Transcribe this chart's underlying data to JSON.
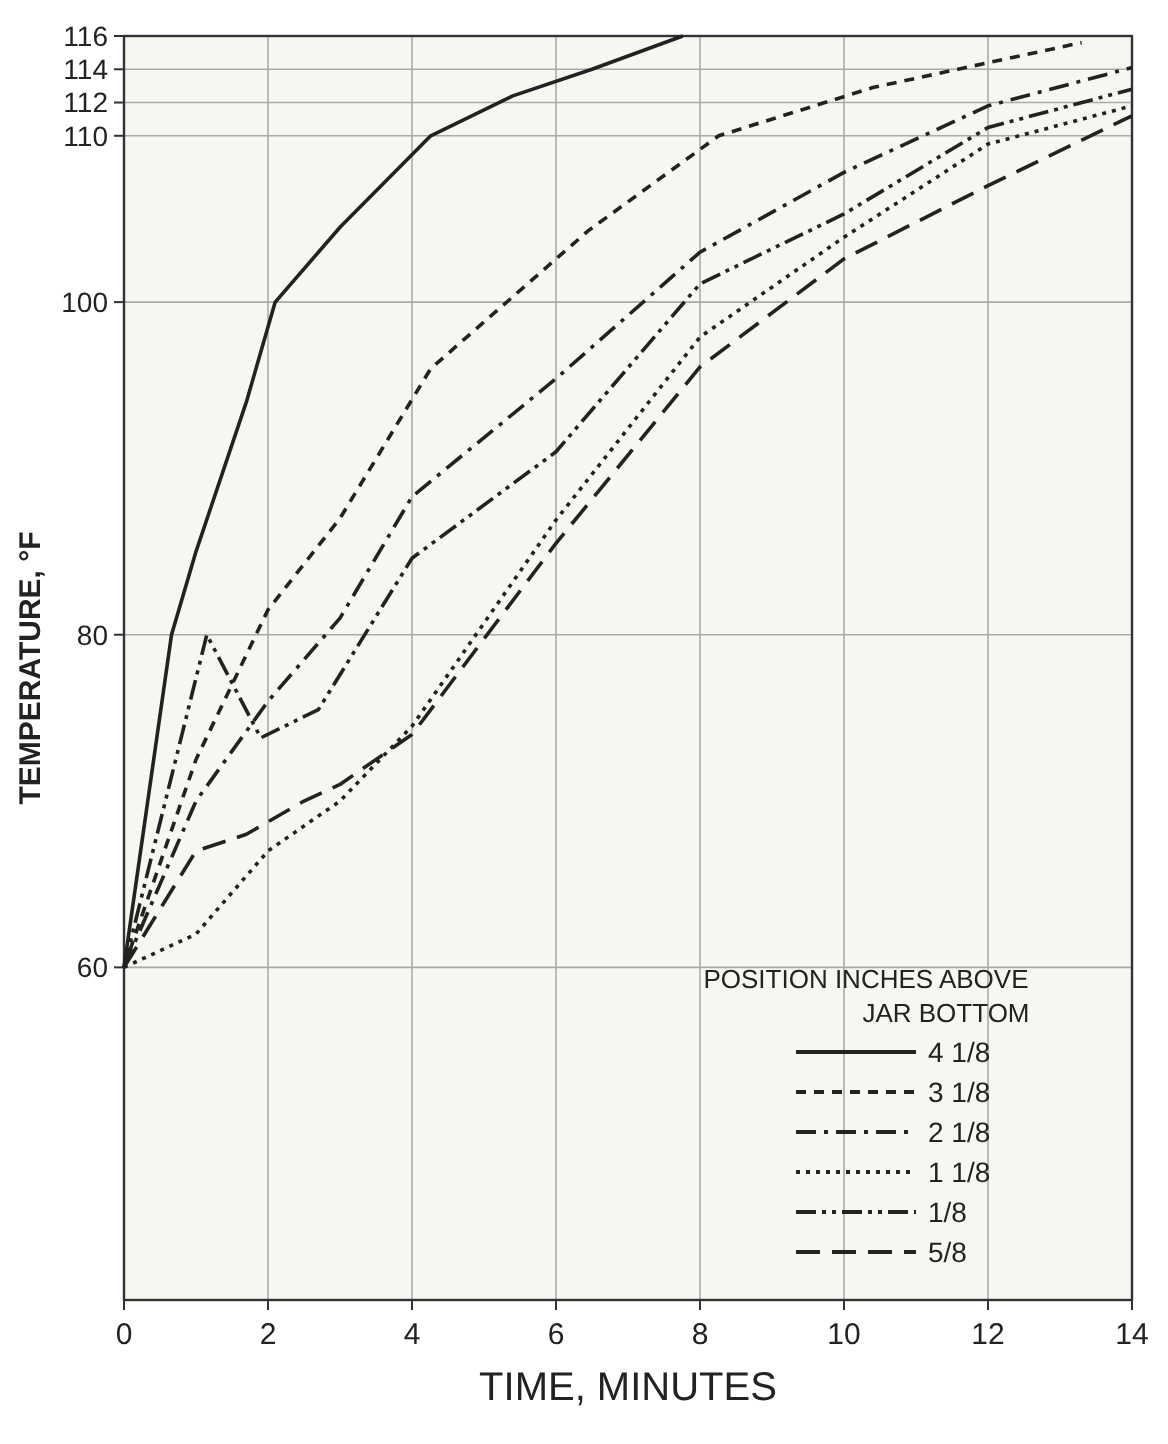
{
  "chart_data": {
    "type": "line",
    "xlabel": "TIME, MINUTES",
    "ylabel": "TEMPERATURE, °F",
    "legend_title": "POSITION INCHES ABOVE JAR BOTTOM",
    "xlim": [
      0,
      14
    ],
    "xticks": [
      0,
      2,
      4,
      6,
      8,
      10,
      12,
      14
    ],
    "ylim": [
      40,
      116
    ],
    "yticks": [
      60,
      80,
      100,
      110,
      112,
      114,
      116
    ],
    "grid": true,
    "legend": "bottom right",
    "series": [
      {
        "name": "4 1/8",
        "color": "#222222",
        "line_style": "solid",
        "x": [
          0,
          0.66,
          1,
          1.7,
          2.1,
          3,
          4.26,
          5.4,
          6.5,
          7.76
        ],
        "values": [
          60,
          80,
          85,
          94,
          100,
          104.5,
          110,
          112.4,
          114,
          116
        ]
      },
      {
        "name": "3 1/8",
        "color": "#222222",
        "line_style": "dashed",
        "x": [
          0,
          1,
          2,
          3,
          4.26,
          6.45,
          8.26,
          10.4,
          13.3
        ],
        "values": [
          60,
          72.5,
          81.5,
          87,
          96,
          104.3,
          110,
          112.9,
          115.6
        ]
      },
      {
        "name": "2 1/8",
        "color": "#222222",
        "line_style": "dashdot",
        "x": [
          0,
          1,
          2,
          3,
          4,
          6,
          8,
          10,
          12,
          14
        ],
        "values": [
          60,
          70,
          76,
          81,
          88.3,
          95.4,
          103,
          107.8,
          111.8,
          114.1
        ]
      },
      {
        "name": "1 1/8",
        "color": "#222222",
        "line_style": "dotted",
        "x": [
          0,
          1,
          2,
          3,
          4,
          6,
          8,
          10,
          12,
          14
        ],
        "values": [
          60,
          62,
          67,
          70,
          74.5,
          86.9,
          97.9,
          103.9,
          109.5,
          111.8
        ]
      },
      {
        "name": "1/8",
        "color": "#222222",
        "line_style": "dashdotdot",
        "x": [
          0,
          1.15,
          1.9,
          2.7,
          4,
          6,
          8,
          10,
          12,
          14
        ],
        "values": [
          60,
          80,
          73.8,
          75.5,
          84.6,
          91,
          101.1,
          105.3,
          110.5,
          112.8
        ]
      },
      {
        "name": "5/8",
        "color": "#222222",
        "line_style": "longdash",
        "x": [
          0,
          1,
          1.7,
          2.5,
          3,
          4,
          6,
          8,
          10,
          12,
          14
        ],
        "values": [
          60,
          67,
          68,
          70,
          71,
          74,
          85.5,
          96.1,
          102.6,
          107,
          111.2
        ]
      }
    ]
  }
}
